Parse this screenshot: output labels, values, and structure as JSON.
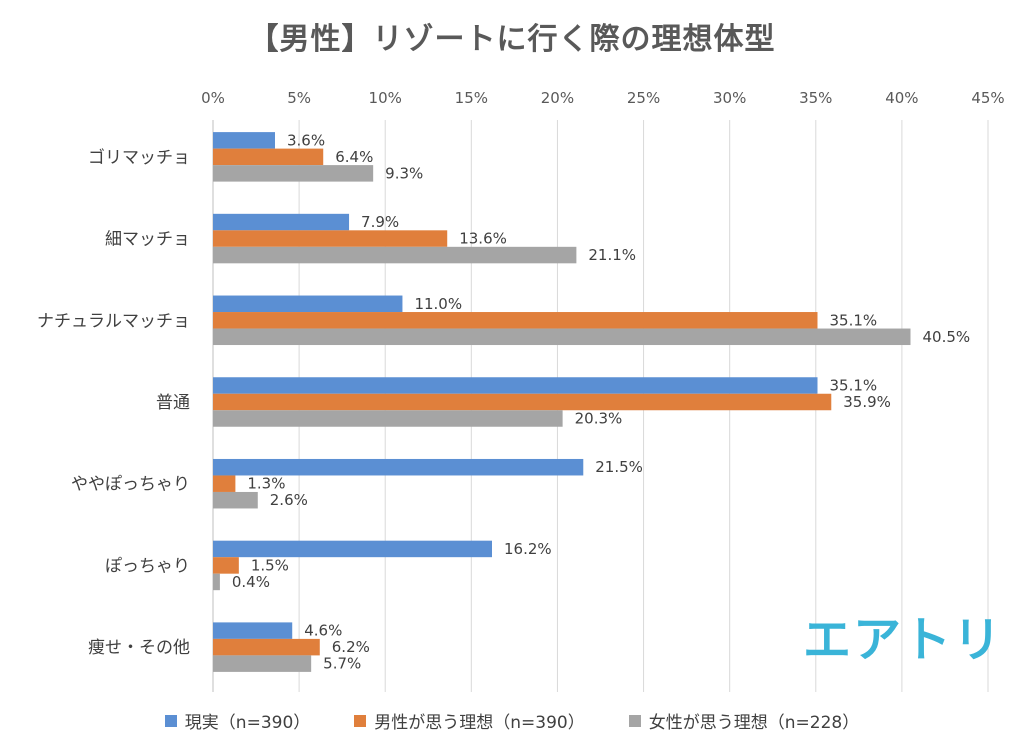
{
  "chart_data": {
    "type": "bar",
    "orientation": "horizontal",
    "title": "【男性】リゾートに行く際の理想体型",
    "categories": [
      "ゴリマッチョ",
      "細マッチョ",
      "ナチュラルマッチョ",
      "普通",
      "ややぽっちゃり",
      "ぽっちゃり",
      "痩せ・その他"
    ],
    "series": [
      {
        "name": "現実（n=390）",
        "color": "#5B8FD3",
        "values": [
          3.6,
          7.9,
          11.0,
          35.1,
          21.5,
          16.2,
          4.6
        ],
        "labels": [
          "3.6%",
          "7.9%",
          "11.0%",
          "35.1%",
          "21.5%",
          "16.2%",
          "4.6%"
        ]
      },
      {
        "name": "男性が思う理想（n=390）",
        "color": "#E07F3C",
        "values": [
          6.4,
          13.6,
          35.1,
          35.9,
          1.3,
          1.5,
          6.2
        ],
        "labels": [
          "6.4%",
          "13.6%",
          "35.1%",
          "35.9%",
          "1.3%",
          "1.5%",
          "6.2%"
        ]
      },
      {
        "name": "女性が思う理想（n=228）",
        "color": "#A5A5A5",
        "values": [
          9.3,
          21.1,
          40.5,
          20.3,
          2.6,
          0.4,
          5.7
        ],
        "labels": [
          "9.3%",
          "21.1%",
          "40.5%",
          "20.3%",
          "2.6%",
          "0.4%",
          "5.7%"
        ]
      }
    ],
    "xlim": [
      0,
      45
    ],
    "xticks": [
      "0%",
      "5%",
      "10%",
      "15%",
      "20%",
      "25%",
      "30%",
      "35%",
      "40%",
      "45%"
    ],
    "axis_position": "top",
    "grid": true,
    "legend_position": "bottom"
  },
  "brand": {
    "logo_text": "エアトリ",
    "color": "#3AB4D8"
  }
}
